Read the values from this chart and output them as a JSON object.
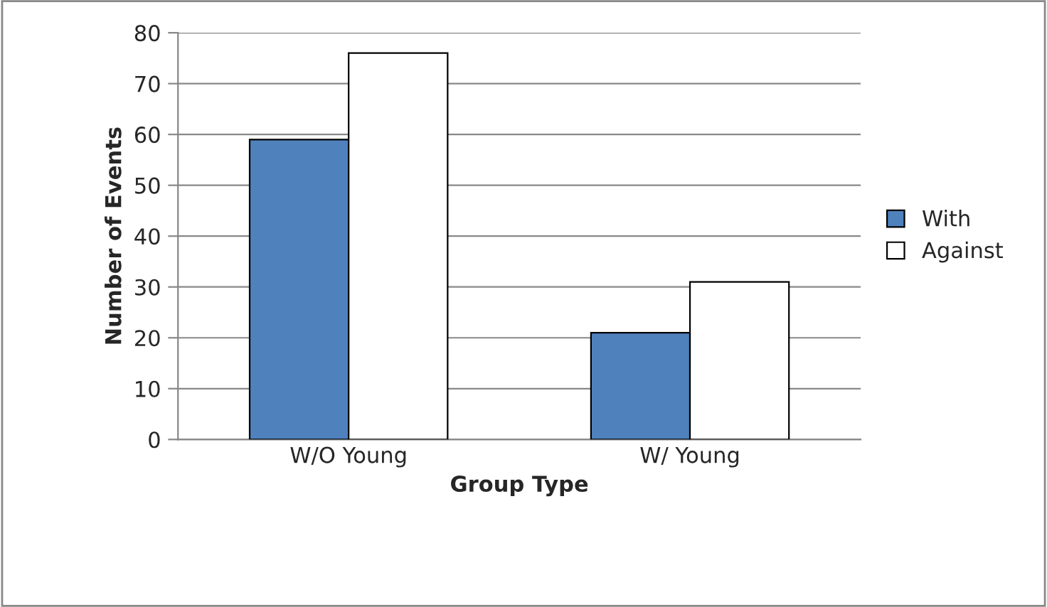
{
  "chart_data": {
    "type": "bar",
    "xlabel": "Group Type",
    "ylabel": "Number of Events",
    "categories": [
      "W/O Young",
      "W/ Young"
    ],
    "series": [
      {
        "name": "With",
        "color": "#4f81bd",
        "values": [
          59,
          21
        ]
      },
      {
        "name": "Against",
        "color": "#ffffff",
        "values": [
          76,
          31
        ]
      }
    ],
    "ylim": [
      0,
      80
    ],
    "yticks": [
      0,
      10,
      20,
      30,
      40,
      50,
      60,
      70,
      80
    ],
    "grid": "y",
    "legend": "right"
  }
}
